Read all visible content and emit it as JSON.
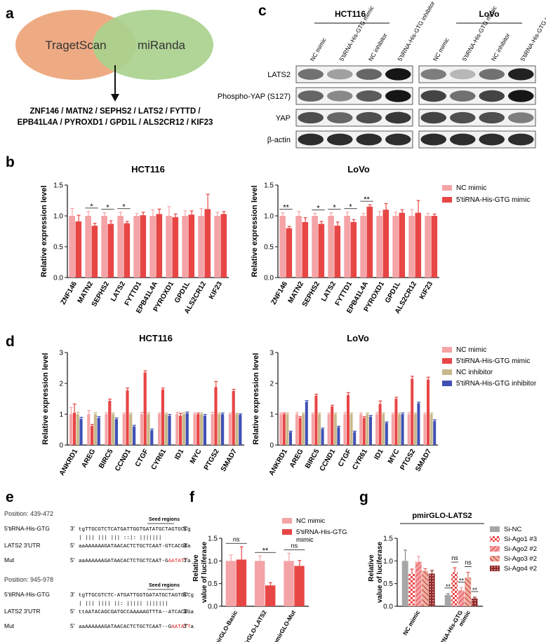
{
  "panel_labels": [
    "a",
    "b",
    "c",
    "d",
    "e",
    "f",
    "g"
  ],
  "panel_a": {
    "left_circle": "TragetScan",
    "right_circle": "miRanda",
    "genes_line1": "ZNF146 / MATN2 / SEPHS2 / LATS2 / FYTTD /",
    "genes_line2": "EPB41L4A / PYROXD1 / GPD1L / ALS2CR12 / KIF23",
    "colors": {
      "left": "#eeab83",
      "right": "#a9d18e"
    }
  },
  "panel_c": {
    "cell_lines": [
      "HCT116",
      "LoVo"
    ],
    "lanes": [
      "NC mimic",
      "5'tiRNA-His-GTG mimic",
      "NC inhibitor",
      "5'tiRNA-His-GTG inhibitor"
    ],
    "rows": [
      "LATS2",
      "Phospho-YAP (S127)",
      "YAP",
      "β-actin"
    ],
    "band_intensity": {
      "HCT116": [
        [
          0.55,
          0.35,
          0.6,
          0.95
        ],
        [
          0.6,
          0.45,
          0.65,
          0.95
        ],
        [
          0.7,
          0.6,
          0.7,
          0.8
        ],
        [
          0.85,
          0.85,
          0.85,
          0.85
        ]
      ],
      "LoVo": [
        [
          0.5,
          0.25,
          0.55,
          0.9
        ],
        [
          0.75,
          0.55,
          0.75,
          0.95
        ],
        [
          0.75,
          0.7,
          0.7,
          0.5
        ],
        [
          0.85,
          0.85,
          0.85,
          0.85
        ]
      ]
    }
  },
  "chart_data": [
    {
      "id": "b-HCT116",
      "type": "bar",
      "title": "HCT116",
      "ylabel": "Relative expression level",
      "ylim": [
        0,
        1.5
      ],
      "yticks": [
        "0.0",
        "0.5",
        "1.0",
        "1.5"
      ],
      "categories": [
        "ZNF146",
        "MATN2",
        "SEPHS2",
        "LATS2",
        "FYTTD1",
        "EPB41L4A",
        "PYROXD1",
        "GPD1L",
        "ALS2CR12",
        "KIF23"
      ],
      "series": [
        {
          "name": "NC mimic",
          "color": "#f4a3a6",
          "values": [
            1.0,
            1.0,
            1.0,
            1.0,
            1.0,
            1.0,
            1.0,
            1.0,
            1.0,
            1.0
          ],
          "errors": [
            0.12,
            0.07,
            0.05,
            0.06,
            0.04,
            0.1,
            0.15,
            0.08,
            0.12,
            0.06
          ]
        },
        {
          "name": "5'tiRNA-His-GTG mimic",
          "color": "#e84545",
          "values": [
            0.91,
            0.84,
            0.87,
            0.88,
            1.01,
            1.03,
            0.98,
            1.02,
            1.11,
            1.03
          ],
          "errors": [
            0.1,
            0.04,
            0.05,
            0.03,
            0.05,
            0.08,
            0.05,
            0.06,
            0.24,
            0.04
          ]
        }
      ],
      "significance": [
        {
          "category": "MATN2",
          "label": "*"
        },
        {
          "category": "SEPHS2",
          "label": "*"
        },
        {
          "category": "LATS2",
          "label": "*"
        }
      ]
    },
    {
      "id": "b-LoVo",
      "type": "bar",
      "title": "LoVo",
      "ylabel": "Relative expression level",
      "ylim": [
        0,
        1.5
      ],
      "yticks": [
        "0.0",
        "0.5",
        "1.0",
        "1.5"
      ],
      "categories": [
        "ZNF146",
        "MATN2",
        "SEPHS2",
        "LATS2",
        "FYTTD1",
        "EPB41L4A",
        "PYROXD1",
        "GPD1L",
        "ALS2CR12",
        "KIF23"
      ],
      "series": [
        {
          "name": "NC mimic",
          "color": "#f4a3a6",
          "values": [
            1.0,
            1.0,
            1.0,
            1.0,
            1.0,
            1.0,
            1.0,
            1.0,
            1.0,
            1.0
          ],
          "errors": [
            0.05,
            0.07,
            0.04,
            0.05,
            0.06,
            0.04,
            0.07,
            0.06,
            0.1,
            0.04
          ]
        },
        {
          "name": "5'tiRNA-His-GTG mimic",
          "color": "#e84545",
          "values": [
            0.8,
            0.9,
            0.87,
            0.84,
            0.9,
            1.15,
            1.1,
            1.05,
            1.05,
            1.0
          ],
          "errors": [
            0.03,
            0.07,
            0.04,
            0.06,
            0.04,
            0.03,
            0.1,
            0.05,
            0.2,
            0.03
          ]
        }
      ],
      "legend": [
        "NC mimic",
        "5'tiRNA-His-GTG mimic"
      ],
      "significance": [
        {
          "category": "ZNF146",
          "label": "**"
        },
        {
          "category": "SEPHS2",
          "label": "*"
        },
        {
          "category": "LATS2",
          "label": "*"
        },
        {
          "category": "FYTTD1",
          "label": "*"
        },
        {
          "category": "EPB41L4A",
          "label": "**"
        }
      ]
    },
    {
      "id": "d-HCT116",
      "type": "bar",
      "title": "HCT116",
      "ylabel": "Relative expression level",
      "ylim": [
        0,
        3
      ],
      "yticks": [
        "0",
        "1",
        "2",
        "3"
      ],
      "categories": [
        "ANKRD1",
        "AREG",
        "BIRC5",
        "CCND1",
        "CTGF",
        "CYR61",
        "ID1",
        "MYC",
        "PTGS2",
        "SMAD7"
      ],
      "series": [
        {
          "name": "NC mimic",
          "color": "#f4a3a6",
          "values": [
            1.0,
            1.0,
            1.0,
            1.0,
            1.0,
            1.0,
            1.0,
            1.0,
            1.0,
            1.0
          ],
          "errors": [
            0.22,
            0.12,
            0.05,
            0.04,
            0.06,
            0.04,
            0.06,
            0.04,
            0.06,
            0.04
          ]
        },
        {
          "name": "5'tiRNA-His-GTG mimic",
          "color": "#e84545",
          "values": [
            1.05,
            0.62,
            1.43,
            1.77,
            2.35,
            1.8,
            0.95,
            1.0,
            1.88,
            1.75
          ],
          "errors": [
            0.28,
            0.05,
            0.06,
            0.08,
            0.06,
            0.05,
            0.08,
            0.04,
            0.18,
            0.06
          ]
        },
        {
          "name": "NC inhibitor",
          "color": "#c8b98a",
          "values": [
            1.0,
            1.0,
            1.0,
            1.0,
            1.0,
            1.0,
            1.0,
            1.0,
            1.0,
            1.0
          ],
          "errors": [
            0.06,
            0.05,
            0.04,
            0.04,
            0.05,
            0.04,
            0.05,
            0.04,
            0.04,
            0.03
          ]
        },
        {
          "name": "5'tiRNA-His-GTG inhibitor",
          "color": "#4050b5",
          "values": [
            0.85,
            0.88,
            0.84,
            0.6,
            0.48,
            0.95,
            1.03,
            0.95,
            1.0,
            0.98
          ],
          "errors": [
            0.05,
            0.04,
            0.04,
            0.04,
            0.04,
            0.04,
            0.04,
            0.04,
            0.04,
            0.03
          ]
        }
      ]
    },
    {
      "id": "d-LoVo",
      "type": "bar",
      "title": "LoVo",
      "ylabel": "Relative expression level",
      "ylim": [
        0,
        3
      ],
      "yticks": [
        "0",
        "1",
        "2",
        "3"
      ],
      "categories": [
        "ANKRD1",
        "AREG",
        "BIRC5",
        "CCND1",
        "CTGF",
        "CYR61",
        "ID1",
        "MYC",
        "PTGS2",
        "SMAD7"
      ],
      "series": [
        {
          "name": "NC mimic",
          "color": "#f4a3a6",
          "values": [
            1.0,
            1.0,
            1.0,
            1.0,
            1.0,
            1.0,
            1.0,
            1.0,
            1.0,
            1.0
          ],
          "errors": [
            0.04,
            0.05,
            0.04,
            0.04,
            0.05,
            0.04,
            0.05,
            0.04,
            0.05,
            0.04
          ]
        },
        {
          "name": "5'tiRNA-His-GTG mimic",
          "color": "#e84545",
          "values": [
            1.0,
            0.88,
            1.6,
            1.25,
            1.62,
            0.88,
            1.33,
            1.5,
            2.15,
            2.12
          ],
          "errors": [
            0.04,
            0.04,
            0.05,
            0.04,
            0.08,
            0.04,
            0.1,
            0.05,
            0.08,
            0.08
          ]
        },
        {
          "name": "NC inhibitor",
          "color": "#c8b98a",
          "values": [
            1.0,
            1.0,
            1.0,
            1.0,
            1.0,
            1.0,
            1.0,
            1.0,
            1.0,
            1.0
          ],
          "errors": [
            0.04,
            0.04,
            0.04,
            0.04,
            0.04,
            0.04,
            0.04,
            0.04,
            0.04,
            0.04
          ]
        },
        {
          "name": "5'tiRNA-His-GTG inhibitor",
          "color": "#4050b5",
          "values": [
            0.42,
            1.4,
            0.52,
            0.58,
            0.42,
            0.92,
            0.72,
            1.0,
            1.35,
            0.78
          ],
          "errors": [
            0.03,
            0.04,
            0.03,
            0.03,
            0.03,
            0.04,
            0.03,
            0.04,
            0.04,
            0.04
          ]
        }
      ],
      "legend": [
        "NC mimic",
        "5'tiRNA-His-GTG mimic",
        "NC inhibitor",
        "5'tiRNA-His-GTG inhibitor"
      ]
    },
    {
      "id": "f",
      "type": "bar",
      "title": "",
      "ylabel": "Relative value of luciferase",
      "ylim": [
        0,
        1.5
      ],
      "yticks": [
        "0.0",
        "0.5",
        "1.0",
        "1.5"
      ],
      "categories": [
        "pmirGLO-Basic",
        "pmirGLO-LATS2",
        "pmirGLO-Mut"
      ],
      "series": [
        {
          "name": "NC mimic",
          "color": "#f4a3a6",
          "values": [
            1.0,
            1.0,
            1.0
          ],
          "errors": [
            0.13,
            0.11,
            0.17
          ]
        },
        {
          "name": "5'tiRNA-His-GTG mimic",
          "color": "#e84545",
          "values": [
            1.03,
            0.46,
            0.89
          ],
          "errors": [
            0.28,
            0.06,
            0.12
          ]
        }
      ],
      "legend": [
        "NC mimic",
        "5'tiRNA-His-GTG mimic"
      ],
      "significance": [
        {
          "category": "pmirGLO-Basic",
          "label": "ns"
        },
        {
          "category": "pmirGLO-LATS2",
          "label": "**"
        },
        {
          "category": "pmirGLO-Mut",
          "label": "ns"
        }
      ]
    },
    {
      "id": "g",
      "type": "bar",
      "title": "pmirGLO-LATS2",
      "ylabel": "Relative value of luciferase",
      "ylim": [
        0,
        1.5
      ],
      "yticks": [
        "0.0",
        "0.5",
        "1.0",
        "1.5"
      ],
      "categories": [
        "NC mimic",
        "5'tiRNA-His-GTG mimic"
      ],
      "series": [
        {
          "name": "Si-NC",
          "color": "#a6a6a6",
          "values": [
            1.0,
            0.25
          ],
          "errors": [
            0.24,
            0.03
          ]
        },
        {
          "name": "Si-Ago1 #3",
          "color": "#e84545",
          "values": [
            0.72,
            0.75
          ],
          "errors": [
            0.1,
            0.1
          ]
        },
        {
          "name": "Si-Ago2 #2",
          "color": "#f4a3a6",
          "values": [
            0.98,
            0.35
          ],
          "errors": [
            0.12,
            0.06
          ]
        },
        {
          "name": "Si-Ago3 #2",
          "color": "#e06060",
          "values": [
            0.78,
            0.63
          ],
          "errors": [
            0.05,
            0.12
          ]
        },
        {
          "name": "Si-Ago4 #2",
          "color": "#8b2a2a",
          "values": [
            0.72,
            0.17
          ],
          "errors": [
            0.07,
            0.03
          ]
        }
      ],
      "legend": [
        "Si-NC",
        "Si-Ago1 #3",
        "Si-Ago2 #2",
        "Si-Ago3 #2",
        "Si-Ago4 #2"
      ],
      "significance": [
        {
          "label": "**"
        },
        {
          "label": "ns"
        },
        {
          "label": "**"
        },
        {
          "label": "ns"
        },
        {
          "label": "**"
        }
      ]
    }
  ],
  "panel_e": {
    "positions": [
      "Position: 439-472",
      "Position: 945-978"
    ],
    "seed_label": "Seed regions",
    "rows": [
      {
        "label": "5'tiRNA-His-GTG",
        "end5": "3'",
        "seq": "tgTTGCGTCTCATGATTGGTGATATGCTAGTGCCg",
        "end3": "5'"
      },
      {
        "label": "",
        "end5": "",
        "seq": "|  |||    ||| |||  ::|: |||||||",
        "end3": ""
      },
      {
        "label": "LATS2 3'UTR",
        "end5": "5'",
        "seq": "aaAAAAAAGATAACACTCTGCTCAAT-GTCACGGa",
        "end3": "3'"
      },
      {
        "label": "Mut",
        "end5": "5'",
        "seq": "aaAAAAAAGATAACACTCTGCTCAAT-G",
        "mut": "AATATT",
        "tail": "a",
        "end3": "3'"
      },
      {
        "label": "5'tiRNA-His-GTG",
        "end5": "3'",
        "seq": "tgTTGCGTCTC-ATGATTGGTGATATGCTAGTGCCg",
        "end3": "5'"
      },
      {
        "label": "",
        "end5": "",
        "seq": "| ||| ||||  ||:   ||||| |||||||",
        "end3": ""
      },
      {
        "label": "LATS2 3'UTR",
        "end5": "5'",
        "seq": "ttAATACAGCGATGCCAAAAAGTTTA--ATCACGGa",
        "end3": "3'"
      },
      {
        "label": "Mut",
        "end5": "5'",
        "seq": "aaAAAAAAGATAACACTCTGCTCAAT--G",
        "mut": "AATATT",
        "tail": "a",
        "end3": "3'"
      }
    ]
  }
}
